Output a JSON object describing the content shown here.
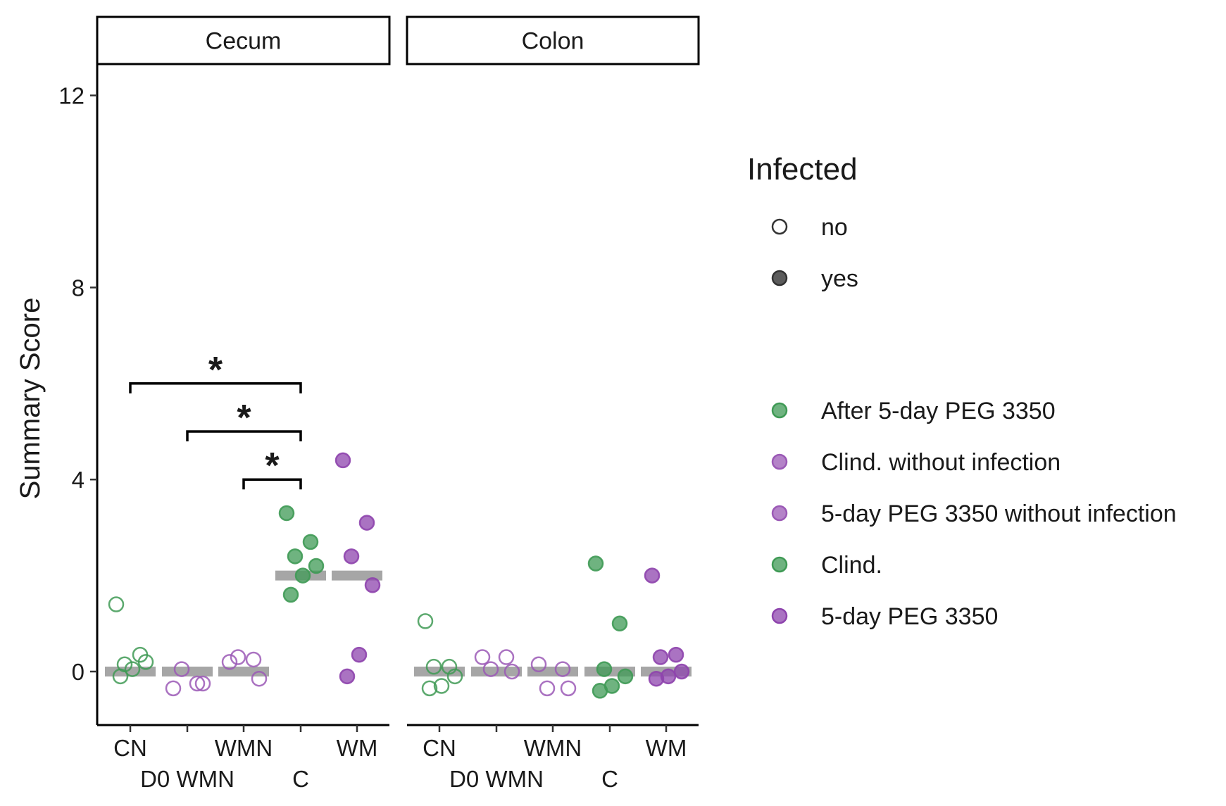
{
  "chart_data": {
    "type": "scatter",
    "ylabel": "Summary Score",
    "xlabel": "",
    "ylim": [
      -1.1,
      12.6
    ],
    "yticks": [
      "0",
      "4",
      "8",
      "12"
    ],
    "categories": [
      "CN",
      "D0 WMN",
      "WMN",
      "C",
      "WM"
    ],
    "panels": [
      {
        "name": "Cecum",
        "medians": [
          0,
          0,
          0,
          2,
          2
        ],
        "points": {
          "CN": [
            {
              "y": 1.4,
              "infected": "no"
            },
            {
              "y": 0.35,
              "infected": "no"
            },
            {
              "y": 0.15,
              "infected": "no"
            },
            {
              "y": 0.2,
              "infected": "no"
            },
            {
              "y": 0.05,
              "infected": "no"
            },
            {
              "y": -0.1,
              "infected": "no"
            }
          ],
          "D0 WMN": [
            {
              "y": -0.35,
              "infected": "no"
            },
            {
              "y": -0.25,
              "infected": "no"
            },
            {
              "y": 0.05,
              "infected": "no"
            },
            {
              "y": -0.25,
              "infected": "no"
            }
          ],
          "WMN": [
            {
              "y": 0.2,
              "infected": "no"
            },
            {
              "y": 0.25,
              "infected": "no"
            },
            {
              "y": 0.3,
              "infected": "no"
            },
            {
              "y": -0.15,
              "infected": "no"
            }
          ],
          "C": [
            {
              "y": 3.3,
              "infected": "yes"
            },
            {
              "y": 2.7,
              "infected": "yes"
            },
            {
              "y": 2.4,
              "infected": "yes"
            },
            {
              "y": 2.2,
              "infected": "yes"
            },
            {
              "y": 2.0,
              "infected": "yes"
            },
            {
              "y": 1.6,
              "infected": "yes"
            }
          ],
          "WM": [
            {
              "y": 4.4,
              "infected": "yes"
            },
            {
              "y": 3.1,
              "infected": "yes"
            },
            {
              "y": 2.4,
              "infected": "yes"
            },
            {
              "y": 1.8,
              "infected": "yes"
            },
            {
              "y": 0.35,
              "infected": "yes"
            },
            {
              "y": -0.1,
              "infected": "yes"
            }
          ]
        },
        "significance": [
          {
            "from": "CN",
            "to": "C",
            "label": "*",
            "y": 6.0
          },
          {
            "from": "D0 WMN",
            "to": "C",
            "label": "*",
            "y": 5.0
          },
          {
            "from": "WMN",
            "to": "C",
            "label": "*",
            "y": 4.0
          }
        ]
      },
      {
        "name": "Colon",
        "medians": [
          0,
          0,
          0,
          0,
          0
        ],
        "points": {
          "CN": [
            {
              "y": 1.05,
              "infected": "no"
            },
            {
              "y": 0.1,
              "infected": "no"
            },
            {
              "y": 0.1,
              "infected": "no"
            },
            {
              "y": -0.1,
              "infected": "no"
            },
            {
              "y": -0.3,
              "infected": "no"
            },
            {
              "y": -0.35,
              "infected": "no"
            }
          ],
          "D0 WMN": [
            {
              "y": 0.3,
              "infected": "no"
            },
            {
              "y": 0.3,
              "infected": "no"
            },
            {
              "y": 0.05,
              "infected": "no"
            },
            {
              "y": 0.0,
              "infected": "no"
            }
          ],
          "WMN": [
            {
              "y": 0.15,
              "infected": "no"
            },
            {
              "y": 0.05,
              "infected": "no"
            },
            {
              "y": -0.35,
              "infected": "no"
            },
            {
              "y": -0.35,
              "infected": "no"
            }
          ],
          "C": [
            {
              "y": 2.25,
              "infected": "yes"
            },
            {
              "y": 1.0,
              "infected": "yes"
            },
            {
              "y": 0.05,
              "infected": "yes"
            },
            {
              "y": -0.1,
              "infected": "yes"
            },
            {
              "y": -0.3,
              "infected": "yes"
            },
            {
              "y": -0.4,
              "infected": "yes"
            }
          ],
          "WM": [
            {
              "y": 2.0,
              "infected": "yes"
            },
            {
              "y": 0.35,
              "infected": "yes"
            },
            {
              "y": 0.3,
              "infected": "yes"
            },
            {
              "y": 0.0,
              "infected": "yes"
            },
            {
              "y": -0.1,
              "infected": "yes"
            },
            {
              "y": -0.15,
              "infected": "yes"
            }
          ]
        },
        "significance": []
      }
    ],
    "category_colors": {
      "CN": "#3f9a55",
      "D0 WMN": "#9b59b6",
      "WMN": "#9b59b6",
      "C": "#3f9a55",
      "WM": "#8e44ad"
    },
    "median_color": "#a6a6a6",
    "legend": {
      "title": "Infected",
      "shape_items": [
        {
          "label": "no",
          "filled": false
        },
        {
          "label": "yes",
          "filled": true
        }
      ],
      "color_items": [
        {
          "label": "After 5-day PEG 3350",
          "color": "#3f9a55"
        },
        {
          "label": "Clind. without infection",
          "color": "#9b59b6"
        },
        {
          "label": "5-day PEG 3350 without infection",
          "color": "#9b59b6"
        },
        {
          "label": "Clind.",
          "color": "#3f9a55"
        },
        {
          "label": "5-day PEG 3350",
          "color": "#8e44ad"
        }
      ],
      "placement": "right"
    },
    "grid": false
  }
}
